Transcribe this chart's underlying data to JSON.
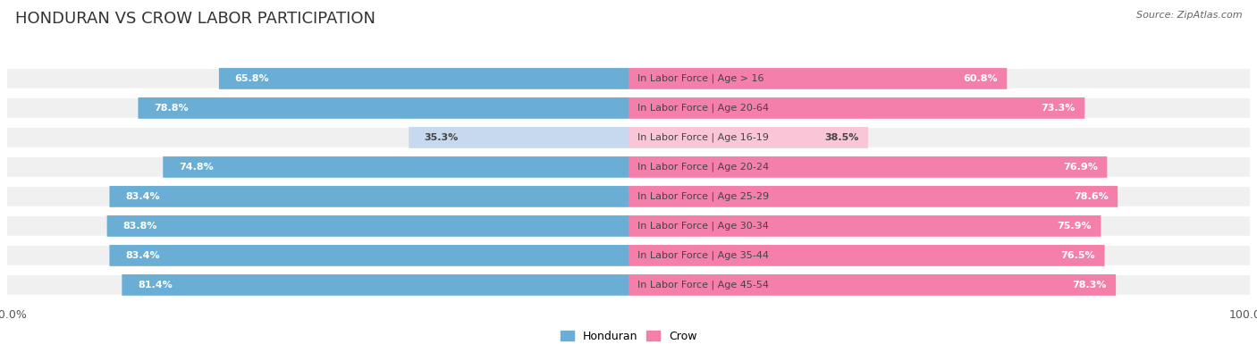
{
  "title": "HONDURAN VS CROW LABOR PARTICIPATION",
  "source": "Source: ZipAtlas.com",
  "categories": [
    "In Labor Force | Age > 16",
    "In Labor Force | Age 20-64",
    "In Labor Force | Age 16-19",
    "In Labor Force | Age 20-24",
    "In Labor Force | Age 25-29",
    "In Labor Force | Age 30-34",
    "In Labor Force | Age 35-44",
    "In Labor Force | Age 45-54"
  ],
  "honduran_values": [
    65.8,
    78.8,
    35.3,
    74.8,
    83.4,
    83.8,
    83.4,
    81.4
  ],
  "crow_values": [
    60.8,
    73.3,
    38.5,
    76.9,
    78.6,
    75.9,
    76.5,
    78.3
  ],
  "honduran_color": "#6aaed6",
  "crow_color": "#f47fab",
  "honduran_color_light": "#c6d9ee",
  "crow_color_light": "#f9c6d8",
  "bg_color": "#ffffff",
  "row_bg_color": "#f0f0f0",
  "label_dark": "#444444",
  "max_val": 100.0,
  "bar_height": 0.68,
  "fig_width": 14.06,
  "fig_height": 3.95,
  "title_fontsize": 13,
  "source_fontsize": 8,
  "val_fontsize": 8,
  "cat_fontsize": 8
}
